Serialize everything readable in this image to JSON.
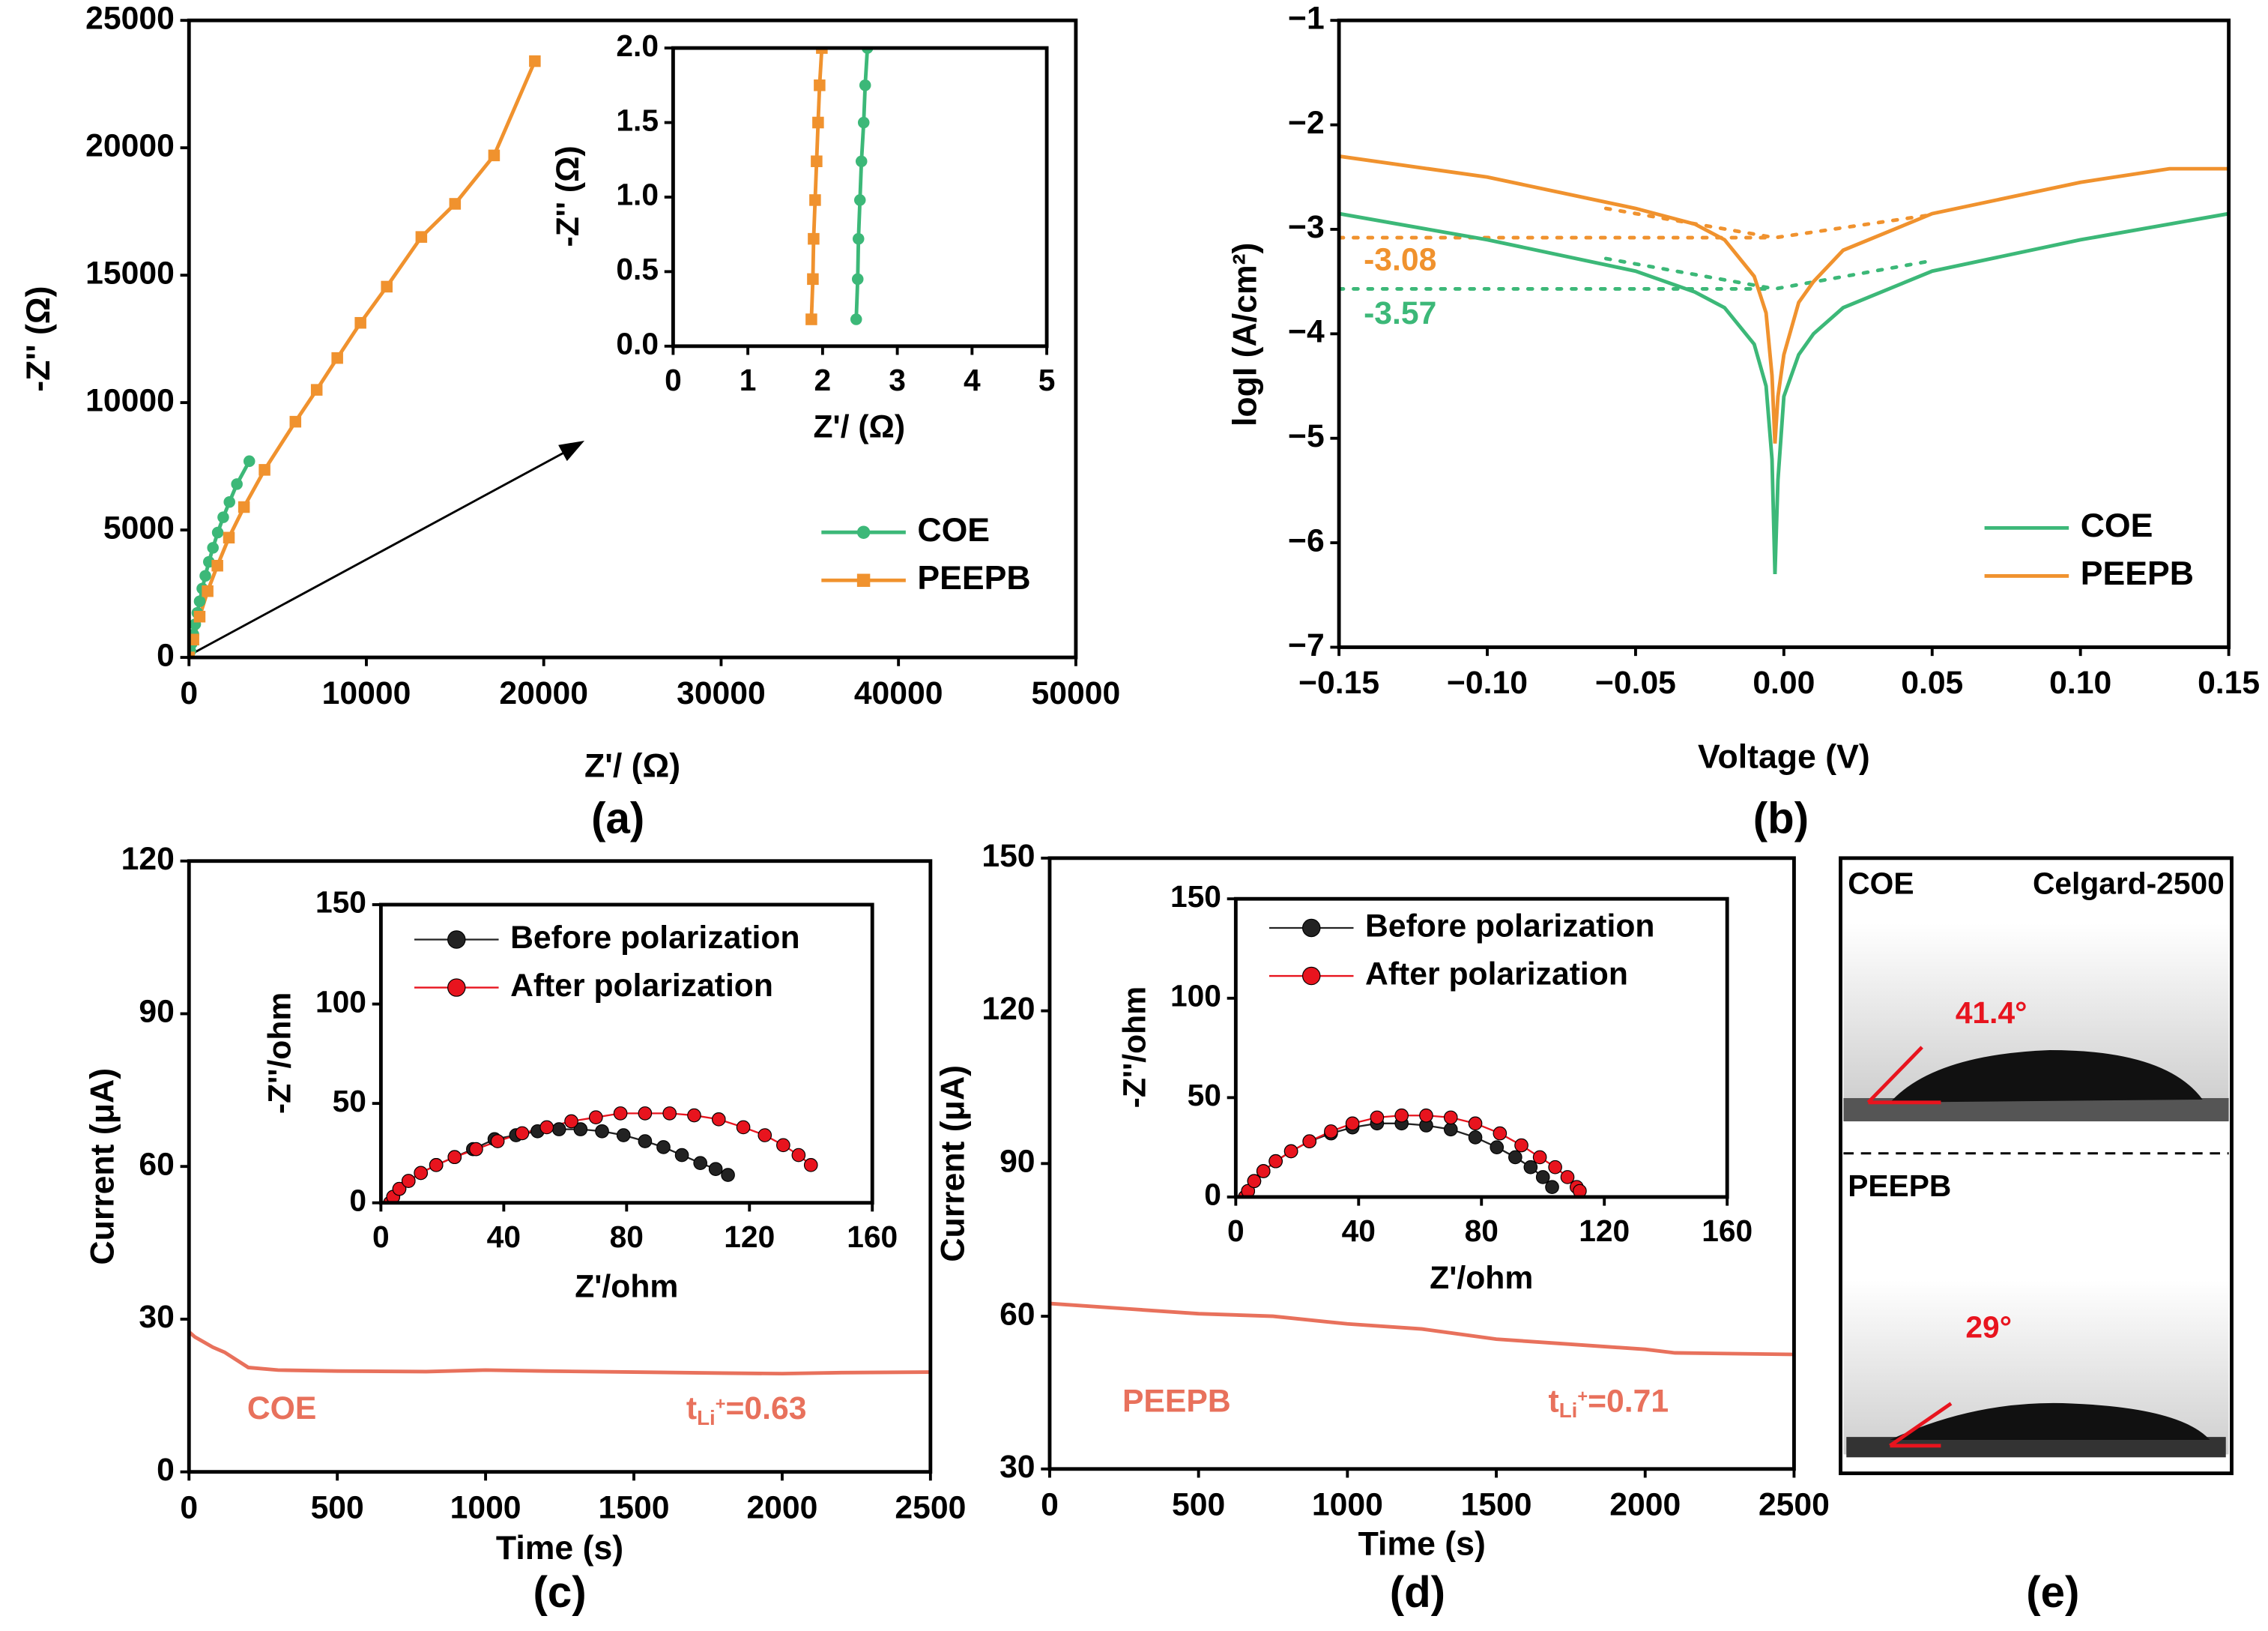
{
  "chart_data": [
    {
      "type": "line",
      "panel_label": "(a)",
      "xlabel": "Z'/ (Ω)",
      "ylabel": "-Z'' (Ω)",
      "xlim": [
        0,
        50000
      ],
      "ylim": [
        0,
        25000
      ],
      "xticks": [
        0,
        10000,
        20000,
        30000,
        40000,
        50000
      ],
      "yticks": [
        0,
        5000,
        10000,
        15000,
        20000,
        25000
      ],
      "series": [
        {
          "name": "COE",
          "color": "#3cb878",
          "marker": "circle",
          "x": [
            0,
            80,
            160,
            250,
            350,
            470,
            600,
            750,
            920,
            1120,
            1350,
            1620,
            1930,
            2280,
            2700,
            3400
          ],
          "values": [
            0,
            250,
            550,
            900,
            1300,
            1750,
            2200,
            2700,
            3200,
            3750,
            4300,
            4900,
            5500,
            6100,
            6800,
            7700
          ]
        },
        {
          "name": "PEEPB",
          "color": "#f0922e",
          "marker": "square",
          "x": [
            0,
            250,
            600,
            1050,
            1600,
            2250,
            3100,
            4260,
            6000,
            7200,
            8360,
            9670,
            11150,
            13100,
            15000,
            17200,
            19500
          ],
          "values": [
            0,
            700,
            1600,
            2600,
            3600,
            4700,
            5900,
            7360,
            9250,
            10500,
            11750,
            13130,
            14550,
            16500,
            17800,
            19700,
            23400
          ]
        }
      ]
    },
    {
      "type": "line",
      "xlabel": "Z'/ (Ω)",
      "ylabel": "-Z'' (Ω)",
      "xlim": [
        0,
        5
      ],
      "ylim": [
        0,
        2.0
      ],
      "xticks": [
        0,
        1,
        2,
        3,
        4,
        5
      ],
      "yticks": [
        {
          "value": 0,
          "label": "0.0"
        },
        {
          "value": 0.5,
          "label": "0.5"
        },
        {
          "value": 1,
          "label": "1.0"
        },
        {
          "value": 1.5,
          "label": "1.5"
        },
        {
          "value": 2,
          "label": "2.0"
        }
      ],
      "series": [
        {
          "name": "COE",
          "color": "#3cb878",
          "marker": "circle",
          "x": [
            2.45,
            2.47,
            2.48,
            2.5,
            2.52,
            2.55,
            2.57,
            2.6
          ],
          "values": [
            0.18,
            0.45,
            0.72,
            0.98,
            1.24,
            1.5,
            1.75,
            2.0
          ]
        },
        {
          "name": "PEEPB",
          "color": "#f0922e",
          "marker": "square",
          "x": [
            1.85,
            1.87,
            1.88,
            1.9,
            1.92,
            1.94,
            1.96,
            1.99
          ],
          "values": [
            0.18,
            0.45,
            0.72,
            0.98,
            1.24,
            1.5,
            1.75,
            2.0
          ]
        }
      ]
    },
    {
      "type": "line",
      "panel_label": "(b)",
      "xlabel": "Voltage (V)",
      "ylabel": "logI (A/cm²)",
      "xlim": [
        -0.15,
        0.15
      ],
      "ylim": [
        -7,
        -1
      ],
      "xticks": [
        {
          "value": -0.15,
          "label": "−0.15"
        },
        {
          "value": -0.1,
          "label": "−0.10"
        },
        {
          "value": -0.05,
          "label": "−0.05"
        },
        {
          "value": 0,
          "label": "0.00"
        },
        0.05,
        {
          "value": 0.1,
          "label": "0.10"
        },
        0.15
      ],
      "yticks": [
        {
          "value": -7,
          "label": "−7"
        },
        {
          "value": -6,
          "label": "−6"
        },
        {
          "value": -5,
          "label": "−5"
        },
        {
          "value": -4,
          "label": "−4"
        },
        {
          "value": -3,
          "label": "−3"
        },
        {
          "value": -2,
          "label": "−2"
        },
        {
          "value": -1,
          "label": "−1"
        }
      ],
      "series": [
        {
          "name": "COE",
          "color": "#3cb878",
          "x": [
            -0.15,
            -0.1,
            -0.05,
            -0.03,
            -0.02,
            -0.01,
            -0.006,
            -0.004,
            -0.003,
            -0.002,
            0,
            0.005,
            0.01,
            0.02,
            0.05,
            0.1,
            0.15
          ],
          "values": [
            -2.85,
            -3.1,
            -3.4,
            -3.6,
            -3.75,
            -4.1,
            -4.5,
            -5.2,
            -6.3,
            -5.4,
            -4.6,
            -4.2,
            -4.0,
            -3.75,
            -3.4,
            -3.1,
            -2.85
          ]
        },
        {
          "name": "PEEPB",
          "color": "#f0922e",
          "x": [
            -0.15,
            -0.1,
            -0.05,
            -0.03,
            -0.02,
            -0.01,
            -0.006,
            -0.004,
            -0.003,
            -0.002,
            0,
            0.005,
            0.01,
            0.02,
            0.05,
            0.1,
            0.13,
            0.15
          ],
          "values": [
            -2.3,
            -2.5,
            -2.8,
            -2.95,
            -3.1,
            -3.45,
            -3.8,
            -4.4,
            -5.05,
            -4.6,
            -4.2,
            -3.7,
            -3.5,
            -3.2,
            -2.85,
            -2.55,
            -2.42,
            -2.42
          ]
        }
      ],
      "fit_lines": [
        {
          "color": "#f0922e",
          "x": [
            -0.15,
            -0.003
          ],
          "values": [
            -3.08,
            -3.08
          ]
        },
        {
          "color": "#f0922e",
          "x": [
            -0.06,
            -0.003,
            0.05
          ],
          "values": [
            -2.8,
            -3.08,
            -2.86
          ]
        },
        {
          "color": "#3cb878",
          "x": [
            -0.15,
            -0.003
          ],
          "values": [
            -3.57,
            -3.57
          ]
        },
        {
          "color": "#3cb878",
          "x": [
            -0.06,
            -0.003,
            0.05
          ],
          "values": [
            -3.28,
            -3.57,
            -3.3
          ]
        }
      ],
      "annotations": [
        {
          "text": "-3.08",
          "color": "#f0922e"
        },
        {
          "text": "-3.57",
          "color": "#3cb878"
        }
      ]
    },
    {
      "type": "line",
      "panel_label": "(c)",
      "xlabel": "Time (s)",
      "ylabel": "Current (μA)",
      "xlim": [
        0,
        2500
      ],
      "ylim": [
        0,
        120
      ],
      "xticks": [
        0,
        500,
        1000,
        1500,
        2000,
        2500
      ],
      "yticks": [
        0,
        30,
        60,
        90,
        120
      ],
      "color": "#e8715c",
      "x": [
        0,
        20,
        50,
        80,
        120,
        160,
        200,
        300,
        500,
        800,
        1000,
        1200,
        1500,
        1800,
        2000,
        2200,
        2500
      ],
      "values": [
        27.5,
        26.5,
        25.5,
        24.5,
        23.5,
        22,
        20.5,
        20,
        19.8,
        19.7,
        20,
        19.8,
        19.6,
        19.4,
        19.3,
        19.5,
        19.6
      ],
      "annotations": [
        {
          "text": "COE",
          "color": "#e8715c"
        },
        {
          "text": "t",
          "sub": "Li",
          "sup": "+",
          "rest": "=0.63",
          "color": "#e8715c"
        }
      ]
    },
    {
      "type": "line",
      "xlabel": "Z'/ohm",
      "ylabel": "-Z''/ohm",
      "xlim": [
        0,
        160
      ],
      "ylim": [
        0,
        150
      ],
      "xticks": [
        0,
        40,
        80,
        120,
        160
      ],
      "yticks": [
        0,
        50,
        100,
        150
      ],
      "series": [
        {
          "name": "Before polarization",
          "color": "#222222",
          "marker": "ball",
          "x": [
            3,
            4,
            6,
            9,
            13,
            18,
            24,
            30,
            37,
            44,
            51,
            58,
            65,
            72,
            79,
            86,
            92,
            98,
            104,
            109,
            113
          ],
          "values": [
            0,
            3,
            7,
            11,
            15,
            19,
            23,
            27,
            32,
            34,
            36,
            37,
            37,
            36,
            34,
            31,
            28,
            24,
            20,
            17,
            14
          ]
        },
        {
          "name": "After polarization",
          "color": "#e8141e",
          "marker": "ball",
          "x": [
            3,
            4,
            6,
            9,
            13,
            18,
            24,
            31,
            38,
            46,
            54,
            62,
            70,
            78,
            86,
            94,
            102,
            110,
            118,
            125,
            131,
            136,
            140
          ],
          "values": [
            0,
            3,
            7,
            11,
            15,
            19,
            23,
            27,
            31,
            35,
            38,
            41,
            43,
            45,
            45,
            45,
            44,
            42,
            38,
            34,
            29,
            24,
            19
          ]
        }
      ]
    },
    {
      "type": "line",
      "panel_label": "(d)",
      "xlabel": "Time (s)",
      "ylabel": "Current (μA)",
      "xlim": [
        0,
        2500
      ],
      "ylim": [
        30,
        150
      ],
      "xticks": [
        0,
        500,
        1000,
        1500,
        2000,
        2500
      ],
      "yticks": [
        30,
        60,
        90,
        120,
        150
      ],
      "color": "#e8715c",
      "x": [
        0,
        250,
        500,
        750,
        1000,
        1250,
        1500,
        1750,
        2000,
        2100,
        2500
      ],
      "values": [
        62.5,
        61.5,
        60.5,
        60,
        58.5,
        57.5,
        55.5,
        54.5,
        53.5,
        52.8,
        52.5
      ],
      "annotations": [
        {
          "text": "PEEPB",
          "color": "#e8715c"
        },
        {
          "text": "t",
          "sub": "Li",
          "sup": "+",
          "rest": "=0.71",
          "color": "#e8715c"
        }
      ]
    },
    {
      "type": "line",
      "xlabel": "Z'/ohm",
      "ylabel": "-Z''/ohm",
      "xlim": [
        0,
        160
      ],
      "ylim": [
        0,
        150
      ],
      "xticks": [
        0,
        40,
        80,
        120,
        160
      ],
      "yticks": [
        0,
        50,
        100,
        150
      ],
      "series": [
        {
          "name": "Before polarization",
          "color": "#222222",
          "marker": "ball",
          "x": [
            3,
            4,
            6,
            9,
            13,
            18,
            24,
            31,
            38,
            46,
            54,
            62,
            70,
            78,
            85,
            91,
            96,
            100,
            103
          ],
          "values": [
            0,
            3,
            8,
            13,
            18,
            23,
            28,
            32,
            35,
            37,
            37,
            36,
            34,
            30,
            25,
            20,
            15,
            10,
            5
          ]
        },
        {
          "name": "After polarization",
          "color": "#e8141e",
          "marker": "ball",
          "x": [
            3,
            4,
            6,
            9,
            13,
            18,
            24,
            31,
            38,
            46,
            54,
            62,
            70,
            78,
            86,
            93,
            99,
            104,
            108,
            111,
            112
          ],
          "values": [
            0,
            3,
            8,
            13,
            18,
            23,
            28,
            33,
            37,
            40,
            41,
            41,
            40,
            37,
            32,
            26,
            20,
            15,
            10,
            5,
            3
          ]
        }
      ]
    }
  ],
  "photo_panel": {
    "label": "(e)",
    "left_title": "COE",
    "right_title": "Celgard-2500",
    "top_angle": "41.4°",
    "bottom_title": "PEEPB",
    "bottom_angle": "29°"
  }
}
